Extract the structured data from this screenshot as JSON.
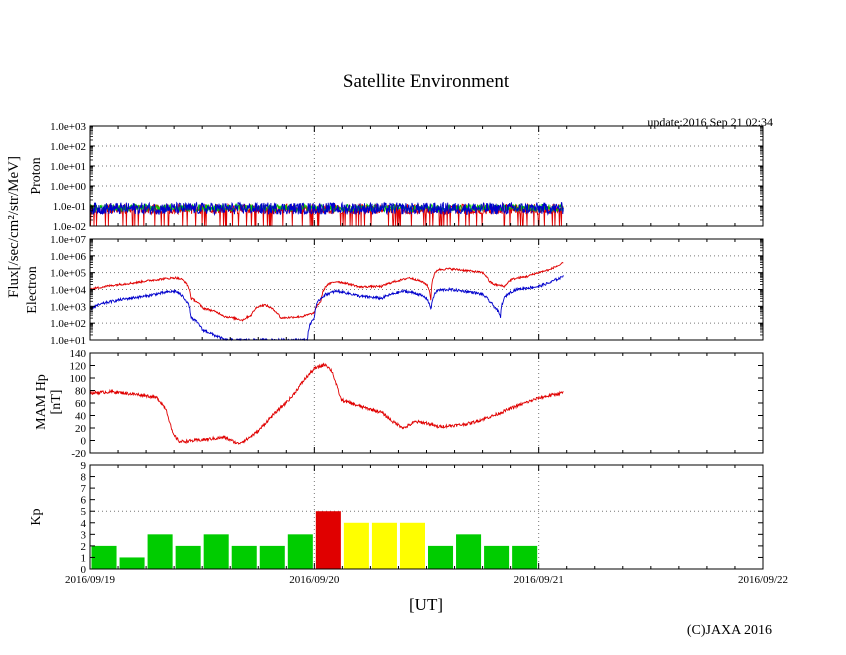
{
  "chart_data": {
    "type": "multi-panel",
    "title": "Satellite Environment",
    "update_text": "update:2016 Sep 21 02:34",
    "xlabel": "[UT]",
    "copyright": "(C)JAXA 2016",
    "x_dates": [
      "2016/09/19",
      "2016/09/20",
      "2016/09/21",
      "2016/09/22"
    ],
    "flux_label": "Flux[/sec/cm²/str/MeV]",
    "colors": {
      "red": "#e00000",
      "blue": "#0000cc",
      "green": "#00cc00",
      "yellow": "#ffff00",
      "grid": "#777777"
    },
    "panels": [
      {
        "id": "proton",
        "ylabel": "Proton",
        "scale": "log",
        "ylim": [
          0.01,
          1000
        ],
        "yticks": [
          "1.0e-02",
          "1.0e-01",
          "1.0e+00",
          "1.0e+01",
          "1.0e+02",
          "1.0e+03"
        ],
        "series": [
          {
            "name": "proton-low",
            "color": "red",
            "level": 0.07,
            "noise": 0.25,
            "dips": true,
            "days": [
              0,
              2.11
            ]
          },
          {
            "name": "proton-mid",
            "color": "green",
            "level": 0.08,
            "noise": 0.18,
            "dips": false,
            "days": [
              0,
              2.11
            ]
          },
          {
            "name": "proton-high",
            "color": "blue",
            "level": 0.075,
            "noise": 0.3,
            "dips": false,
            "days": [
              0,
              2.11
            ]
          }
        ]
      },
      {
        "id": "electron",
        "ylabel": "Electron",
        "scale": "log",
        "ylim": [
          10,
          10000000
        ],
        "yticks": [
          "1.0e+01",
          "1.0e+02",
          "1.0e+03",
          "1.0e+04",
          "1.0e+05",
          "1.0e+06",
          "1.0e+07"
        ],
        "series": [
          {
            "name": "electron-low",
            "color": "red",
            "noise": 0.06,
            "points": [
              [
                0,
                10000
              ],
              [
                0.2,
                25000
              ],
              [
                0.38,
                50000
              ],
              [
                0.41,
                40000
              ],
              [
                0.45,
                3000
              ],
              [
                0.5,
                800
              ],
              [
                0.6,
                250
              ],
              [
                0.68,
                150
              ],
              [
                0.72,
                300
              ],
              [
                0.75,
                1000
              ],
              [
                0.78,
                1200
              ],
              [
                0.82,
                600
              ],
              [
                0.85,
                200
              ],
              [
                0.95,
                250
              ],
              [
                1.0,
                400
              ],
              [
                1.03,
                2000
              ],
              [
                1.06,
                20000
              ],
              [
                1.1,
                30000
              ],
              [
                1.2,
                14000
              ],
              [
                1.25,
                15000
              ],
              [
                1.3,
                15000
              ],
              [
                1.4,
                40000
              ],
              [
                1.42,
                50000
              ],
              [
                1.45,
                40000
              ],
              [
                1.5,
                20000
              ],
              [
                1.52,
                1500
              ],
              [
                1.55,
                150000
              ],
              [
                1.6,
                170000
              ],
              [
                1.75,
                100000
              ],
              [
                1.78,
                30000
              ],
              [
                1.8,
                20000
              ],
              [
                1.85,
                15000
              ],
              [
                1.88,
                40000
              ],
              [
                1.95,
                60000
              ],
              [
                2.0,
                100000
              ],
              [
                2.05,
                150000
              ],
              [
                2.1,
                300000
              ],
              [
                2.11,
                400000
              ]
            ]
          },
          {
            "name": "electron-high",
            "color": "blue",
            "noise": 0.08,
            "points": [
              [
                0,
                700
              ],
              [
                0.1,
                2000
              ],
              [
                0.25,
                4000
              ],
              [
                0.38,
                8000
              ],
              [
                0.42,
                3000
              ],
              [
                0.45,
                200
              ],
              [
                0.5,
                40
              ],
              [
                0.55,
                20
              ],
              [
                0.6,
                10
              ],
              [
                0.7,
                10
              ],
              [
                0.8,
                10
              ],
              [
                0.9,
                10
              ],
              [
                0.97,
                10
              ],
              [
                1.0,
                200
              ],
              [
                1.05,
                5000
              ],
              [
                1.1,
                8000
              ],
              [
                1.2,
                4000
              ],
              [
                1.3,
                3000
              ],
              [
                1.4,
                8000
              ],
              [
                1.45,
                6000
              ],
              [
                1.5,
                3000
              ],
              [
                1.52,
                500
              ],
              [
                1.55,
                9000
              ],
              [
                1.6,
                10000
              ],
              [
                1.7,
                7000
              ],
              [
                1.75,
                5000
              ],
              [
                1.78,
                2000
              ],
              [
                1.8,
                1000
              ],
              [
                1.83,
                200
              ],
              [
                1.86,
                5000
              ],
              [
                1.9,
                10000
              ],
              [
                2.0,
                15000
              ],
              [
                2.05,
                25000
              ],
              [
                2.1,
                50000
              ],
              [
                2.11,
                70000
              ]
            ]
          }
        ]
      },
      {
        "id": "magnetic",
        "ylabel": "MAM Hp",
        "ylabel2": "[nT]",
        "scale": "linear",
        "ylim": [
          -20,
          140
        ],
        "yticks": [
          "-20",
          "0",
          "20",
          "40",
          "60",
          "80",
          "100",
          "120",
          "140"
        ],
        "series": [
          {
            "name": "hp",
            "color": "red",
            "noise": 2.5,
            "points": [
              [
                0,
                76
              ],
              [
                0.1,
                78
              ],
              [
                0.25,
                72
              ],
              [
                0.3,
                68
              ],
              [
                0.34,
                50
              ],
              [
                0.37,
                10
              ],
              [
                0.4,
                -2
              ],
              [
                0.5,
                1
              ],
              [
                0.55,
                3
              ],
              [
                0.6,
                5
              ],
              [
                0.63,
                0
              ],
              [
                0.66,
                -5
              ],
              [
                0.7,
                2
              ],
              [
                0.75,
                15
              ],
              [
                0.8,
                35
              ],
              [
                0.9,
                70
              ],
              [
                0.95,
                95
              ],
              [
                1.0,
                115
              ],
              [
                1.05,
                122
              ],
              [
                1.08,
                110
              ],
              [
                1.12,
                65
              ],
              [
                1.2,
                55
              ],
              [
                1.3,
                45
              ],
              [
                1.35,
                30
              ],
              [
                1.4,
                20
              ],
              [
                1.45,
                30
              ],
              [
                1.5,
                28
              ],
              [
                1.55,
                22
              ],
              [
                1.65,
                25
              ],
              [
                1.7,
                28
              ],
              [
                1.8,
                40
              ],
              [
                1.9,
                55
              ],
              [
                2.0,
                68
              ],
              [
                2.05,
                72
              ],
              [
                2.1,
                76
              ],
              [
                2.11,
                77
              ]
            ]
          }
        ]
      },
      {
        "id": "kp",
        "ylabel": "Kp",
        "scale": "linear",
        "ylim": [
          0,
          9
        ],
        "yticks": [
          "0",
          "1",
          "2",
          "3",
          "4",
          "5",
          "6",
          "7",
          "8",
          "9"
        ],
        "bars": [
          {
            "kp": 2,
            "color": "green"
          },
          {
            "kp": 1,
            "color": "green"
          },
          {
            "kp": 3,
            "color": "green"
          },
          {
            "kp": 2,
            "color": "green"
          },
          {
            "kp": 3,
            "color": "green"
          },
          {
            "kp": 2,
            "color": "green"
          },
          {
            "kp": 2,
            "color": "green"
          },
          {
            "kp": 3,
            "color": "green"
          },
          {
            "kp": 5,
            "color": "red"
          },
          {
            "kp": 4,
            "color": "yellow"
          },
          {
            "kp": 4,
            "color": "yellow"
          },
          {
            "kp": 4,
            "color": "yellow"
          },
          {
            "kp": 2,
            "color": "green"
          },
          {
            "kp": 3,
            "color": "green"
          },
          {
            "kp": 2,
            "color": "green"
          },
          {
            "kp": 2,
            "color": "green"
          }
        ]
      }
    ]
  }
}
